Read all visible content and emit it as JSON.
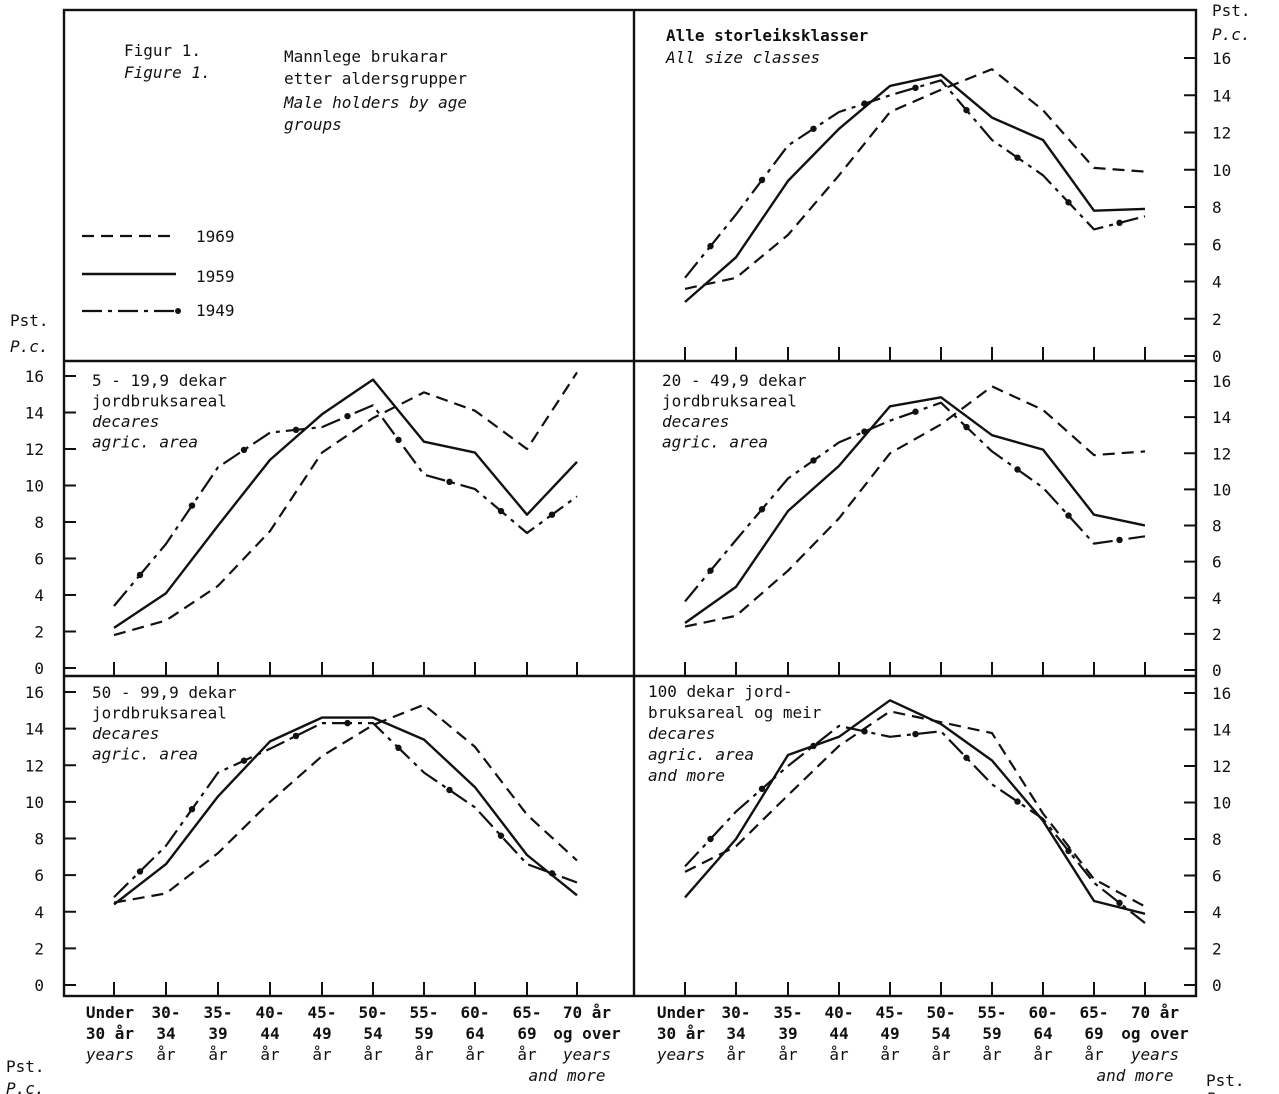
{
  "figure": {
    "label_no": "Figur 1.",
    "label_en": "Figure 1.",
    "title_no_1": "Mannlege brukarar",
    "title_no_2": "etter aldersgrupper",
    "title_en_1": "Male holders by age",
    "title_en_2": "groups"
  },
  "legend": [
    {
      "label": "1969",
      "style": "dashed"
    },
    {
      "label": "1959",
      "style": "solid"
    },
    {
      "label": "1949",
      "style": "dash-dot"
    }
  ],
  "axis": {
    "pst": "Pst.",
    "pc": "P.c."
  },
  "x_labels": [
    {
      "l1": "Under",
      "l2": "30 år",
      "l3": "years",
      "l4": ""
    },
    {
      "l1": "30-",
      "l2": "34",
      "l3": "år",
      "l4": ""
    },
    {
      "l1": "35-",
      "l2": "39",
      "l3": "år",
      "l4": ""
    },
    {
      "l1": "40-",
      "l2": "44",
      "l3": "år",
      "l4": ""
    },
    {
      "l1": "45-",
      "l2": "49",
      "l3": "år",
      "l4": ""
    },
    {
      "l1": "50-",
      "l2": "54",
      "l3": "år",
      "l4": ""
    },
    {
      "l1": "55-",
      "l2": "59",
      "l3": "år",
      "l4": ""
    },
    {
      "l1": "60-",
      "l2": "64",
      "l3": "år",
      "l4": ""
    },
    {
      "l1": "65-",
      "l2": "69",
      "l3": "år",
      "l4": ""
    },
    {
      "l1": "70 år",
      "l2": "og over",
      "l3": "years",
      "l4": "and more"
    }
  ],
  "chart_data": [
    {
      "type": "line",
      "title_lines": [
        {
          "text": "Alle storleiksklasser",
          "italic": false,
          "bold": true
        },
        {
          "text": "All size classes",
          "italic": true,
          "bold": false
        }
      ],
      "categories": [
        "Under 30 år",
        "30-34 år",
        "35-39 år",
        "40-44 år",
        "45-49 år",
        "50-54 år",
        "55-59 år",
        "60-64 år",
        "65-69 år",
        "70 år og over"
      ],
      "ylim": [
        0,
        16
      ],
      "yticks": [
        0,
        2,
        4,
        6,
        8,
        10,
        12,
        14,
        16
      ],
      "series": [
        {
          "name": "1969",
          "values": [
            3.6,
            4.2,
            6.5,
            9.7,
            13.1,
            14.3,
            15.4,
            13.2,
            10.1,
            9.9
          ]
        },
        {
          "name": "1959",
          "values": [
            2.9,
            5.3,
            9.4,
            12.2,
            14.5,
            15.1,
            12.8,
            11.6,
            7.8,
            7.9
          ]
        },
        {
          "name": "1949",
          "values": [
            4.2,
            7.6,
            11.3,
            13.1,
            14.0,
            14.8,
            11.6,
            9.7,
            6.8,
            7.5
          ]
        }
      ]
    },
    {
      "type": "line",
      "title_lines": [
        {
          "text": "5 - 19,9 dekar",
          "italic": false,
          "bold": false
        },
        {
          "text": "jordbruksareal",
          "italic": false,
          "bold": false
        },
        {
          "text": "decares",
          "italic": true,
          "bold": false
        },
        {
          "text": "agric. area",
          "italic": true,
          "bold": false
        }
      ],
      "categories": [
        "Under 30 år",
        "30-34 år",
        "35-39 år",
        "40-44 år",
        "45-49 år",
        "50-54 år",
        "55-59 år",
        "60-64 år",
        "65-69 år",
        "70 år og over"
      ],
      "ylim": [
        0,
        16
      ],
      "yticks": [
        0,
        2,
        4,
        6,
        8,
        10,
        12,
        14,
        16
      ],
      "series": [
        {
          "name": "1969",
          "values": [
            1.8,
            2.6,
            4.5,
            7.5,
            11.8,
            13.7,
            15.1,
            14.1,
            12.0,
            16.2
          ]
        },
        {
          "name": "1959",
          "values": [
            2.2,
            4.1,
            7.8,
            11.4,
            13.9,
            15.8,
            12.4,
            11.8,
            8.4,
            11.3
          ]
        },
        {
          "name": "1949",
          "values": [
            3.4,
            6.8,
            11.0,
            12.9,
            13.2,
            14.4,
            10.6,
            9.8,
            7.4,
            9.4
          ]
        }
      ]
    },
    {
      "type": "line",
      "title_lines": [
        {
          "text": "20 - 49,9 dekar",
          "italic": false,
          "bold": false
        },
        {
          "text": "jordbruksareal",
          "italic": false,
          "bold": false
        },
        {
          "text": "decares",
          "italic": true,
          "bold": false
        },
        {
          "text": "agric. area",
          "italic": true,
          "bold": false
        }
      ],
      "categories": [
        "Under 30 år",
        "30-34 år",
        "35-39 år",
        "40-44 år",
        "45-49 år",
        "50-54 år",
        "55-59 år",
        "60-64 år",
        "65-69 år",
        "70 år og over"
      ],
      "ylim": [
        0,
        16
      ],
      "yticks": [
        0,
        2,
        4,
        6,
        8,
        10,
        12,
        14,
        16
      ],
      "series": [
        {
          "name": "1969",
          "values": [
            2.4,
            3.0,
            5.5,
            8.4,
            12.0,
            13.6,
            15.7,
            14.4,
            11.9,
            12.1
          ]
        },
        {
          "name": "1959",
          "values": [
            2.6,
            4.6,
            8.8,
            11.3,
            14.6,
            15.1,
            13.0,
            12.2,
            8.6,
            8.0
          ]
        },
        {
          "name": "1949",
          "values": [
            3.8,
            7.2,
            10.6,
            12.6,
            13.8,
            14.8,
            12.1,
            10.1,
            7.0,
            7.4
          ]
        }
      ]
    },
    {
      "type": "line",
      "title_lines": [
        {
          "text": "50 - 99,9 dekar",
          "italic": false,
          "bold": false
        },
        {
          "text": "jordbruksareal",
          "italic": false,
          "bold": false
        },
        {
          "text": "decares",
          "italic": true,
          "bold": false
        },
        {
          "text": "agric. area",
          "italic": true,
          "bold": false
        }
      ],
      "categories": [
        "Under 30 år",
        "30-34 år",
        "35-39 år",
        "40-44 år",
        "45-49 år",
        "50-54 år",
        "55-59 år",
        "60-64 år",
        "65-69 år",
        "70 år og over"
      ],
      "ylim": [
        0,
        16
      ],
      "yticks": [
        0,
        2,
        4,
        6,
        8,
        10,
        12,
        14,
        16
      ],
      "series": [
        {
          "name": "1969",
          "values": [
            4.5,
            5.0,
            7.2,
            10.0,
            12.5,
            14.2,
            15.3,
            13.0,
            9.3,
            6.8
          ]
        },
        {
          "name": "1959",
          "values": [
            4.4,
            6.6,
            10.3,
            13.3,
            14.6,
            14.6,
            13.4,
            10.8,
            7.1,
            4.9
          ]
        },
        {
          "name": "1949",
          "values": [
            4.8,
            7.6,
            11.6,
            12.9,
            14.3,
            14.3,
            11.6,
            9.7,
            6.6,
            5.6
          ]
        }
      ]
    },
    {
      "type": "line",
      "title_lines": [
        {
          "text": "100 dekar jord-",
          "italic": false,
          "bold": false
        },
        {
          "text": "bruksareal og meir",
          "italic": false,
          "bold": false
        },
        {
          "text": "decares",
          "italic": true,
          "bold": false
        },
        {
          "text": "agric. area",
          "italic": true,
          "bold": false
        },
        {
          "text": "and more",
          "italic": true,
          "bold": false
        }
      ],
      "categories": [
        "Under 30 år",
        "30-34 år",
        "35-39 år",
        "40-44 år",
        "45-49 år",
        "50-54 år",
        "55-59 år",
        "60-64 år",
        "65-69 år",
        "70 år og over"
      ],
      "ylim": [
        0,
        16
      ],
      "yticks": [
        0,
        2,
        4,
        6,
        8,
        10,
        12,
        14,
        16
      ],
      "series": [
        {
          "name": "1969",
          "values": [
            6.2,
            7.6,
            10.4,
            13.1,
            15.0,
            14.4,
            13.8,
            9.4,
            5.8,
            4.3
          ]
        },
        {
          "name": "1959",
          "values": [
            4.8,
            8.0,
            12.6,
            13.6,
            15.6,
            14.3,
            12.3,
            9.0,
            4.6,
            3.9
          ]
        },
        {
          "name": "1949",
          "values": [
            6.5,
            9.5,
            12.0,
            14.2,
            13.6,
            13.9,
            11.0,
            9.1,
            5.6,
            3.4
          ]
        }
      ]
    }
  ]
}
